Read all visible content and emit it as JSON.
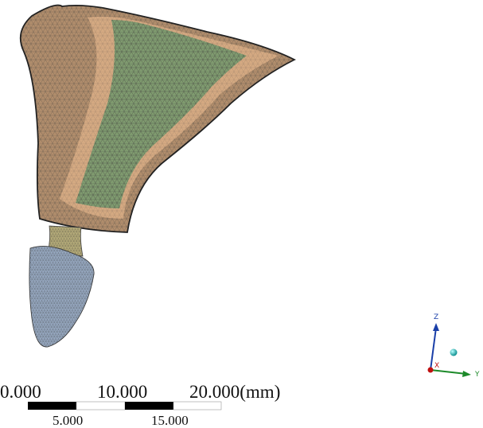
{
  "scale_bar": {
    "top_labels": [
      "0.000",
      "10.000",
      "20.000(mm)"
    ],
    "bottom_labels": [
      "5.000",
      "15.000"
    ]
  },
  "triad": {
    "z": "Z",
    "x": "X",
    "y": "Y"
  }
}
